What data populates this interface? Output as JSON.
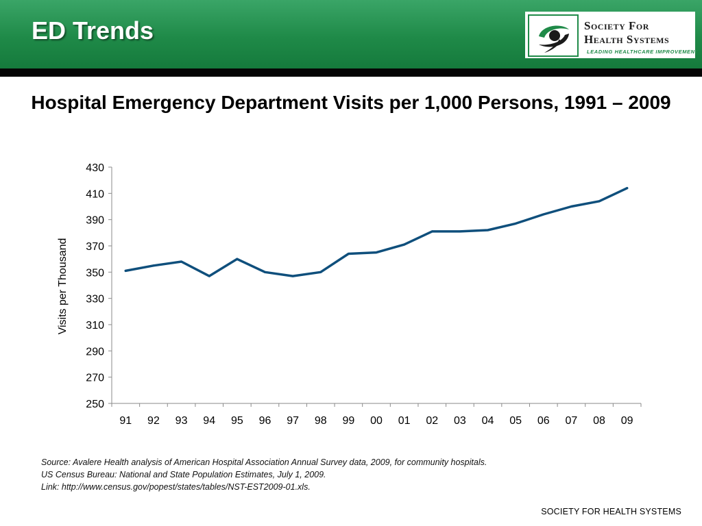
{
  "slide": {
    "title": "ED Trends"
  },
  "logo": {
    "line1": "Society For",
    "line2": "Health Systems",
    "tagline": "LEADING HEALTHCARE IMPROVEMENT",
    "icon": "swoosh-icon",
    "colors": {
      "green": "#1f8a48",
      "dark": "#1a1a1a"
    }
  },
  "chart_data": {
    "type": "line",
    "title": "Hospital Emergency Department Visits per 1,000 Persons, 1991 – 2009",
    "xlabel": "",
    "ylabel": "Visits per Thousand",
    "categories": [
      "91",
      "92",
      "93",
      "94",
      "95",
      "96",
      "97",
      "98",
      "99",
      "00",
      "01",
      "02",
      "03",
      "04",
      "05",
      "06",
      "07",
      "08",
      "09"
    ],
    "series": [
      {
        "values": [
          351,
          355,
          358,
          347,
          360,
          350,
          347,
          350,
          364,
          365,
          371,
          381,
          381,
          382,
          387,
          394,
          400,
          404,
          414
        ]
      }
    ],
    "ylim": [
      250,
      430
    ],
    "yticks": [
      "250",
      "270",
      "290",
      "310",
      "330",
      "350",
      "370",
      "390",
      "410",
      "430"
    ],
    "grid": false,
    "line_color": "#0f4f7c"
  },
  "source": {
    "lines": [
      "Source: Avalere Health analysis of American Hospital Association Annual Survey data, 2009, for community hospitals.",
      "US Census Bureau: National and State Population Estimates, July 1, 2009.",
      "Link: http://www.census.gov/popest/states/tables/NST-EST2009-01.xls."
    ]
  },
  "footer": {
    "text": "SOCIETY FOR HEALTH SYSTEMS"
  }
}
